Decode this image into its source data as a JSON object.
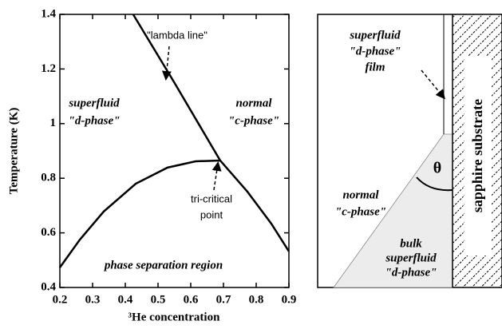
{
  "chart_data": {
    "type": "line",
    "x_label": "³He concentration",
    "y_label": "Temperature  (K)",
    "xlim": [
      0.2,
      0.9
    ],
    "ylim": [
      0.4,
      1.4
    ],
    "xticks": [
      0.2,
      0.3,
      0.4,
      0.5,
      0.6,
      0.7,
      0.8,
      0.9
    ],
    "yticks": [
      0.4,
      0.6,
      0.8,
      1,
      1.2,
      1.4
    ],
    "series": [
      {
        "color": "#000000",
        "x": [
          0.424,
          0.55,
          0.69
        ],
        "values": [
          1.4,
          1.15,
          0.865
        ]
      },
      {
        "color": "#000000",
        "x": [
          0.2,
          0.261,
          0.334,
          0.432,
          0.529,
          0.615,
          0.69,
          0.773,
          0.846,
          0.9
        ],
        "values": [
          0.473,
          0.575,
          0.678,
          0.78,
          0.839,
          0.862,
          0.865,
          0.751,
          0.634,
          0.532
        ]
      }
    ],
    "annotations": [
      "\"lambda line\"",
      "superfluid",
      "\"d-phase\"",
      "normal",
      "\"c-phase\"",
      "tri-critical",
      "point",
      "phase separation region"
    ]
  },
  "diagram": {
    "texts": [
      "superfluid",
      "\"d-phase\"",
      "film",
      "θ",
      "normal",
      "\"c-phase\"",
      "bulk",
      "superfluid",
      "\"d-phase\""
    ],
    "substrate": "sapphire substrate"
  }
}
